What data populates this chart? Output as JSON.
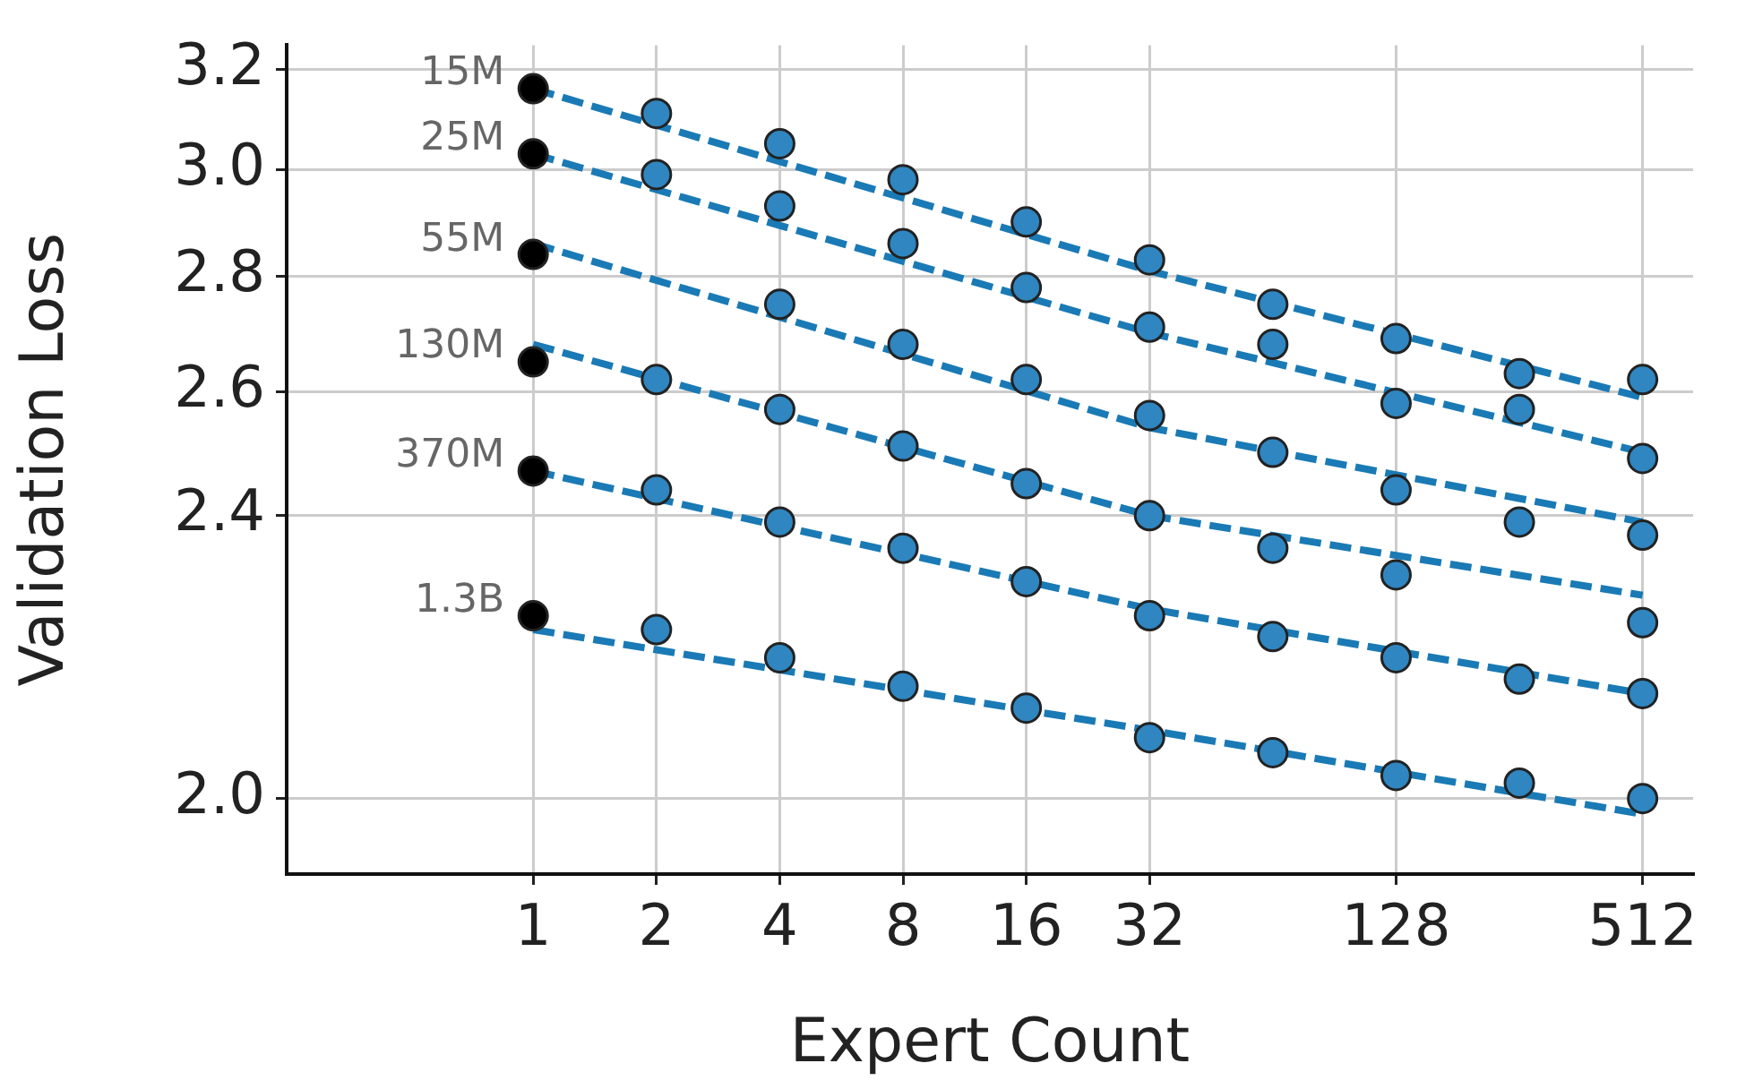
{
  "chart_data": {
    "type": "scatter",
    "xlabel": "Expert Count",
    "ylabel": "Validation Loss",
    "x": [
      1,
      2,
      4,
      8,
      16,
      32,
      64,
      128,
      256,
      512
    ],
    "series": [
      {
        "name": "15M",
        "colors": [
          "#000000",
          "#2f86c0",
          "#2f86c0",
          "#2f86c0",
          "#2f86c0",
          "#2f86c0",
          "#2f86c0",
          "#2f86c0",
          "#2f86c0",
          "#2f86c0"
        ],
        "values": [
          3.16,
          3.11,
          3.05,
          2.98,
          2.9,
          2.83,
          2.75,
          2.69,
          2.63,
          2.62
        ]
      },
      {
        "name": "25M",
        "colors": [
          "#000000",
          "#2f86c0",
          "#2f86c0",
          "#2f86c0",
          "#2f86c0",
          "#2f86c0",
          "#2f86c0",
          "#2f86c0",
          "#2f86c0",
          "#2f86c0"
        ],
        "values": [
          3.03,
          2.99,
          2.93,
          2.86,
          2.78,
          2.71,
          2.68,
          2.58,
          2.57,
          2.49
        ]
      },
      {
        "name": "55M",
        "colors": [
          "#000000",
          null,
          "#2f86c0",
          "#2f86c0",
          "#2f86c0",
          "#2f86c0",
          "#2f86c0",
          "#2f86c0",
          "#2f86c0",
          "#2f86c0"
        ],
        "values": [
          2.84,
          null,
          2.75,
          2.68,
          2.62,
          2.56,
          2.5,
          2.44,
          2.39,
          2.37
        ]
      },
      {
        "name": "130M",
        "colors": [
          "#000000",
          "#2f86c0",
          "#2f86c0",
          "#2f86c0",
          "#2f86c0",
          "#2f86c0",
          "#2f86c0",
          "#2f86c0",
          null,
          "#2f86c0"
        ],
        "values": [
          2.65,
          2.62,
          2.57,
          2.51,
          2.45,
          2.4,
          2.35,
          2.31,
          null,
          2.24
        ]
      },
      {
        "name": "370M",
        "colors": [
          "#000000",
          "#2f86c0",
          "#2f86c0",
          "#2f86c0",
          "#2f86c0",
          "#2f86c0",
          "#2f86c0",
          "#2f86c0",
          "#2f86c0",
          "#2f86c0"
        ],
        "values": [
          2.47,
          2.44,
          2.39,
          2.35,
          2.3,
          2.25,
          2.22,
          2.19,
          2.16,
          2.14
        ]
      },
      {
        "name": "1.3B",
        "colors": [
          "#000000",
          "#2f86c0",
          "#2f86c0",
          "#2f86c0",
          "#2f86c0",
          "#2f86c0",
          "#2f86c0",
          "#2f86c0",
          "#2f86c0",
          "#2f86c0"
        ],
        "values": [
          2.25,
          2.23,
          2.19,
          2.15,
          2.12,
          2.08,
          2.06,
          2.03,
          2.02,
          2.0
        ]
      },
      {
        "type": "line",
        "color": "#1a7ab5",
        "line_style": "dashed",
        "marker": "none",
        "x": [
          1,
          32,
          512
        ],
        "values": [
          3.16,
          2.81,
          2.59
        ]
      },
      {
        "type": "line",
        "color": "#1a7ab5",
        "line_style": "dashed",
        "marker": "none",
        "x": [
          1,
          32,
          512
        ],
        "values": [
          3.03,
          2.7,
          2.5
        ]
      },
      {
        "type": "line",
        "color": "#1a7ab5",
        "line_style": "dashed",
        "marker": "none",
        "x": [
          1,
          32,
          512
        ],
        "values": [
          2.86,
          2.54,
          2.39
        ]
      },
      {
        "type": "line",
        "color": "#1a7ab5",
        "line_style": "dashed",
        "marker": "none",
        "x": [
          1,
          32,
          512
        ],
        "values": [
          2.68,
          2.4,
          2.28
        ]
      },
      {
        "type": "line",
        "color": "#1a7ab5",
        "line_style": "dashed",
        "marker": "none",
        "x": [
          1,
          32,
          512
        ],
        "values": [
          2.47,
          2.26,
          2.14
        ]
      },
      {
        "type": "line",
        "color": "#1a7ab5",
        "line_style": "dashed",
        "marker": "none",
        "x": [
          1,
          32,
          512
        ],
        "values": [
          2.23,
          2.09,
          1.98
        ]
      }
    ],
    "log": "xy",
    "xlim": [
      0.25,
      680
    ],
    "ylim": [
      1.905,
      3.25
    ],
    "xticks": [
      1,
      2,
      4,
      8,
      16,
      32,
      128,
      512
    ],
    "yticks": [
      {
        "value": 2.0,
        "label": "2.0"
      },
      2.4,
      2.6,
      2.8,
      {
        "value": 3.0,
        "label": "3.0"
      },
      3.2
    ],
    "grid": true,
    "legend": false,
    "marker": "circle"
  }
}
